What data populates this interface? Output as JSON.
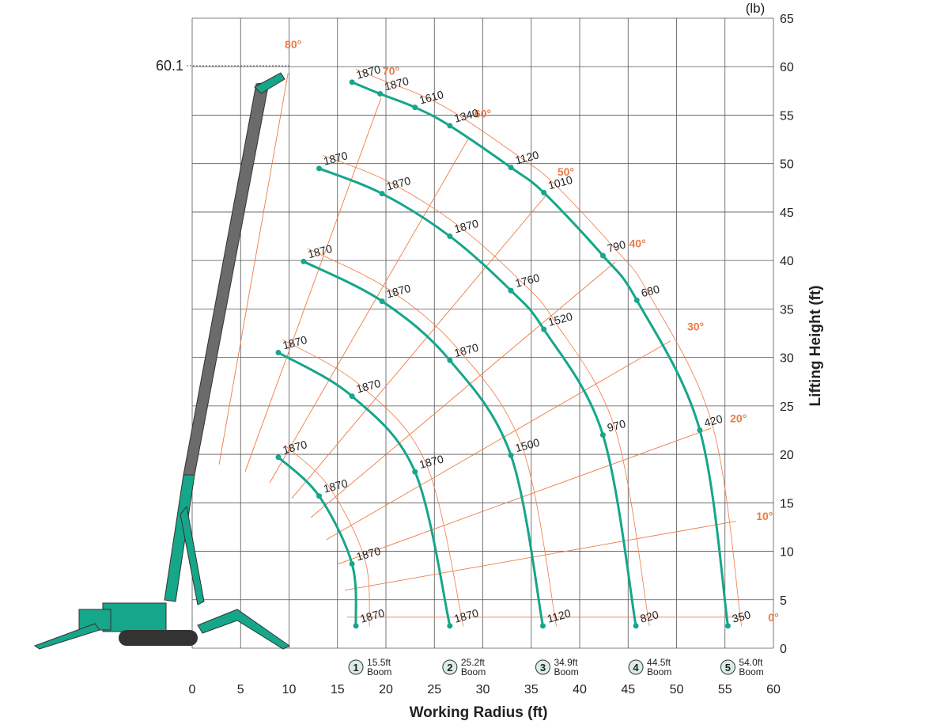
{
  "chart_data": {
    "type": "line",
    "unit_label": "(lb)",
    "x_label": "Working Radius (ft)",
    "y_label": "Lifting Height (ft)",
    "max_height": 60.1,
    "xlim": [
      0,
      60
    ],
    "xticks": [
      0,
      5,
      10,
      15,
      20,
      25,
      30,
      35,
      40,
      45,
      50,
      55,
      60
    ],
    "ylim": [
      0,
      65
    ],
    "yticks": [
      0,
      5,
      10,
      15,
      20,
      25,
      30,
      35,
      40,
      45,
      50,
      55,
      60,
      65
    ],
    "grid": true,
    "color": "#16a68a",
    "angle_color": "#ee7a45",
    "boom_angles": [
      {
        "value": 80,
        "label": "80°"
      },
      {
        "value": 70,
        "label": "70°"
      },
      {
        "value": 60,
        "label": "60°"
      },
      {
        "value": 50,
        "label": "50°"
      },
      {
        "value": 40,
        "label": "40°"
      },
      {
        "value": 30,
        "label": "30°"
      },
      {
        "value": 20,
        "label": "20°"
      },
      {
        "value": 10,
        "label": "10°"
      },
      {
        "value": 0,
        "label": "0°"
      }
    ],
    "series": [
      {
        "number": "1",
        "name": "15.5ft Boom",
        "x": [
          8.9,
          13.1,
          16.5,
          16.9
        ],
        "values": [
          19.7,
          15.7,
          8.7,
          2.3
        ],
        "loads": [
          1870,
          1870,
          1870,
          1870
        ]
      },
      {
        "number": "2",
        "name": "25.2ft Boom",
        "x": [
          8.9,
          16.5,
          23.0,
          26.6
        ],
        "values": [
          30.5,
          26.0,
          18.2,
          2.3
        ],
        "loads": [
          1870,
          1870,
          1870,
          1870
        ]
      },
      {
        "number": "3",
        "name": "34.9ft Boom",
        "x": [
          11.5,
          19.6,
          26.6,
          32.9,
          36.2
        ],
        "values": [
          39.9,
          35.8,
          29.7,
          19.9,
          2.3
        ],
        "loads": [
          1870,
          1870,
          1870,
          1500,
          1120
        ]
      },
      {
        "number": "4",
        "name": "44.5ft Boom",
        "x": [
          13.1,
          19.6,
          26.6,
          32.9,
          36.3,
          42.4,
          45.8
        ],
        "values": [
          49.5,
          46.9,
          42.5,
          36.9,
          32.9,
          22.0,
          2.3
        ],
        "loads": [
          1870,
          1870,
          1870,
          1760,
          1520,
          970,
          820
        ]
      },
      {
        "number": "5",
        "name": "54.0ft Boom",
        "x": [
          16.5,
          19.4,
          23.0,
          26.6,
          32.9,
          36.3,
          42.4,
          45.9,
          52.4,
          55.3
        ],
        "values": [
          58.4,
          57.2,
          55.8,
          53.9,
          49.6,
          47.0,
          40.5,
          35.9,
          22.5,
          2.3
        ],
        "loads": [
          1870,
          1870,
          1610,
          1340,
          1120,
          1010,
          790,
          680,
          420,
          350
        ]
      }
    ]
  }
}
